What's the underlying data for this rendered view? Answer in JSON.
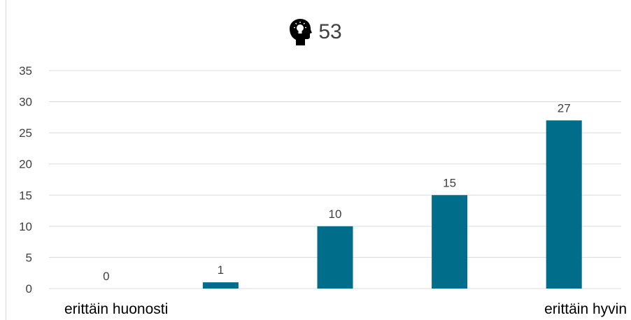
{
  "chart_data": {
    "type": "bar",
    "title": "53",
    "title_icon": "head-lightbulb-icon",
    "categories": [
      "erittäin huonosti",
      "",
      "",
      "",
      "erittäin hyvin"
    ],
    "values": [
      0,
      1,
      10,
      15,
      27
    ],
    "series": [
      {
        "values": [
          0,
          1,
          10,
          15,
          27
        ]
      }
    ],
    "xlabel": "",
    "ylabel": "",
    "ylim": [
      0,
      35
    ],
    "yticks": [
      0,
      5,
      10,
      15,
      20,
      25,
      30,
      35
    ],
    "grid": true,
    "legend": "none",
    "data_labels": true,
    "bar_color": "#006d8a",
    "grid_color": "#d9d9d9",
    "text_color": "#404040"
  }
}
